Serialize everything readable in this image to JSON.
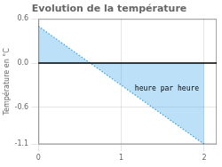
{
  "chart_data": {
    "type": "area",
    "title": "Evolution de la température",
    "ylabel": "Température en °C",
    "x": [
      0,
      2
    ],
    "series": [
      {
        "values": [
          0.5,
          -1.1
        ],
        "line_style": "dotted"
      }
    ],
    "xlim": [
      0,
      2.15
    ],
    "ylim": [
      -1.1,
      0.6
    ],
    "xticks": [
      0,
      1,
      2
    ],
    "yticks": [
      -1.1,
      -0.6,
      {
        "value": 0.0,
        "label": "0.0"
      },
      0.6
    ],
    "grid": true,
    "annotations": [
      {
        "text": "heure par heure",
        "x": 1.55,
        "y": -0.28
      }
    ]
  }
}
